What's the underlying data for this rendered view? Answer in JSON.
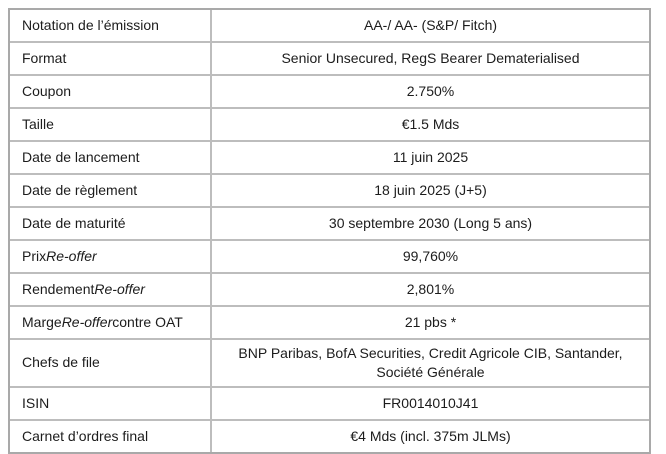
{
  "colors": {
    "outer_border": "#a9a9a9",
    "inner_border": "#bdbdbd",
    "text": "#1c1c1c",
    "background": "#ffffff"
  },
  "table": {
    "rows": [
      {
        "label": [
          {
            "text": "Notation de l’émission"
          }
        ],
        "value": "AA-/ AA- (S&P/ Fitch)"
      },
      {
        "label": [
          {
            "text": "Format"
          }
        ],
        "value": "Senior Unsecured, RegS Bearer Dematerialised"
      },
      {
        "label": [
          {
            "text": "Coupon"
          }
        ],
        "value": "2.750%"
      },
      {
        "label": [
          {
            "text": "Taille"
          }
        ],
        "value": "€1.5 Mds"
      },
      {
        "label": [
          {
            "text": "Date de lancement"
          }
        ],
        "value": "11 juin 2025"
      },
      {
        "label": [
          {
            "text": "Date de règlement"
          }
        ],
        "value": "18 juin 2025 (J+5)"
      },
      {
        "label": [
          {
            "text": "Date de maturité"
          }
        ],
        "value": "30 septembre 2030 (Long 5 ans)"
      },
      {
        "label": [
          {
            "text": "Prix "
          },
          {
            "text": "Re-offer",
            "italic": true
          }
        ],
        "value": "99,760%"
      },
      {
        "label": [
          {
            "text": "Rendement "
          },
          {
            "text": "Re-offer",
            "italic": true
          }
        ],
        "value": "2,801%"
      },
      {
        "label": [
          {
            "text": "Marge "
          },
          {
            "text": "Re-offer",
            "italic": true
          },
          {
            "text": " contre OAT"
          }
        ],
        "value": "21 pbs *"
      },
      {
        "label": [
          {
            "text": "Chefs de file"
          }
        ],
        "value": "BNP Paribas, BofA Securities, Credit Agricole CIB, Santander, Société Générale"
      },
      {
        "label": [
          {
            "text": "ISIN"
          }
        ],
        "value": "FR0014010J41"
      },
      {
        "label": [
          {
            "text": "Carnet d’ordres final"
          }
        ],
        "value": "€4 Mds (incl. 375m JLMs)"
      }
    ]
  }
}
